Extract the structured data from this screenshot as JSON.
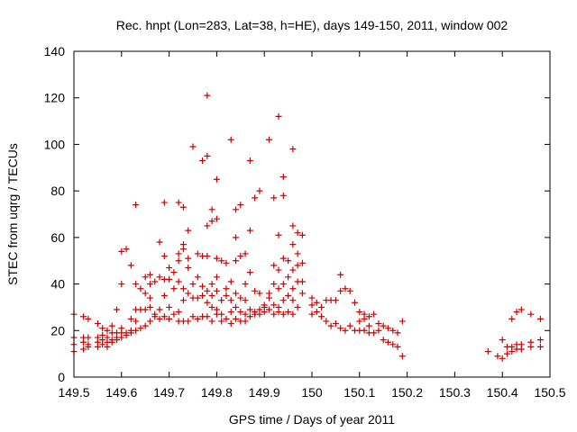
{
  "chart_data": {
    "type": "scatter",
    "title": "Rec. hnpt (Lon=283, Lat=38, h=HE), days 149-150, 2011, window 002",
    "xlabel": "GPS time / Days of year 2011",
    "ylabel": "STEC from uqrg / TECUs",
    "xlim": [
      149.5,
      150.5
    ],
    "ylim": [
      0,
      140
    ],
    "xticks": [
      "149.5",
      "149.6",
      "149.7",
      "149.8",
      "149.9",
      "150",
      "150.1",
      "150.2",
      "150.3",
      "150.4",
      "150.5"
    ],
    "yticks": [
      "0",
      "20",
      "40",
      "60",
      "80",
      "100",
      "120",
      "140"
    ],
    "grid": false,
    "marker": "plus",
    "marker_color": "#cc0000",
    "points": [
      [
        149.5,
        27
      ],
      [
        149.5,
        17
      ],
      [
        149.5,
        14
      ],
      [
        149.5,
        11
      ],
      [
        149.52,
        26
      ],
      [
        149.52,
        17
      ],
      [
        149.52,
        15
      ],
      [
        149.52,
        12
      ],
      [
        149.53,
        25
      ],
      [
        149.53,
        17
      ],
      [
        149.53,
        14
      ],
      [
        149.53,
        13
      ],
      [
        149.55,
        23
      ],
      [
        149.55,
        17
      ],
      [
        149.55,
        15
      ],
      [
        149.55,
        13
      ],
      [
        149.56,
        21
      ],
      [
        149.56,
        18
      ],
      [
        149.56,
        16
      ],
      [
        149.56,
        14
      ],
      [
        149.57,
        20
      ],
      [
        149.57,
        17
      ],
      [
        149.57,
        15
      ],
      [
        149.57,
        13
      ],
      [
        149.58,
        22
      ],
      [
        149.58,
        19
      ],
      [
        149.58,
        16
      ],
      [
        149.58,
        15
      ],
      [
        149.59,
        29
      ],
      [
        149.59,
        19
      ],
      [
        149.59,
        17
      ],
      [
        149.59,
        16
      ],
      [
        149.6,
        54
      ],
      [
        149.6,
        40
      ],
      [
        149.6,
        21
      ],
      [
        149.6,
        19
      ],
      [
        149.6,
        17
      ],
      [
        149.61,
        55
      ],
      [
        149.61,
        19
      ],
      [
        149.61,
        18
      ],
      [
        149.62,
        48
      ],
      [
        149.62,
        25
      ],
      [
        149.62,
        20
      ],
      [
        149.62,
        19
      ],
      [
        149.63,
        74
      ],
      [
        149.63,
        40
      ],
      [
        149.63,
        29
      ],
      [
        149.63,
        24
      ],
      [
        149.63,
        20
      ],
      [
        149.64,
        38
      ],
      [
        149.64,
        29
      ],
      [
        149.64,
        21
      ],
      [
        149.65,
        43
      ],
      [
        149.65,
        36
      ],
      [
        149.65,
        29
      ],
      [
        149.65,
        22
      ],
      [
        149.66,
        44
      ],
      [
        149.66,
        40
      ],
      [
        149.66,
        34
      ],
      [
        149.66,
        30
      ],
      [
        149.66,
        24
      ],
      [
        149.67,
        41
      ],
      [
        149.67,
        27
      ],
      [
        149.67,
        26
      ],
      [
        149.68,
        58
      ],
      [
        149.68,
        43
      ],
      [
        149.68,
        29
      ],
      [
        149.68,
        25
      ],
      [
        149.69,
        75
      ],
      [
        149.69,
        52
      ],
      [
        149.69,
        42
      ],
      [
        149.69,
        35
      ],
      [
        149.69,
        26
      ],
      [
        149.7,
        47
      ],
      [
        149.7,
        42
      ],
      [
        149.7,
        30
      ],
      [
        149.7,
        25
      ],
      [
        149.71,
        45
      ],
      [
        149.71,
        38
      ],
      [
        149.71,
        27
      ],
      [
        149.72,
        75
      ],
      [
        149.72,
        53
      ],
      [
        149.72,
        50
      ],
      [
        149.72,
        41
      ],
      [
        149.72,
        28
      ],
      [
        149.72,
        24
      ],
      [
        149.73,
        73
      ],
      [
        149.73,
        57
      ],
      [
        149.73,
        55
      ],
      [
        149.73,
        38
      ],
      [
        149.73,
        33
      ],
      [
        149.73,
        24
      ],
      [
        149.74,
        63
      ],
      [
        149.74,
        51
      ],
      [
        149.74,
        47
      ],
      [
        149.74,
        36
      ],
      [
        149.74,
        24
      ],
      [
        149.75,
        99
      ],
      [
        149.75,
        40
      ],
      [
        149.75,
        34
      ],
      [
        149.75,
        26
      ],
      [
        149.76,
        53
      ],
      [
        149.76,
        43
      ],
      [
        149.76,
        34
      ],
      [
        149.76,
        25
      ],
      [
        149.77,
        93
      ],
      [
        149.77,
        52
      ],
      [
        149.77,
        39
      ],
      [
        149.77,
        35
      ],
      [
        149.77,
        26
      ],
      [
        149.78,
        121
      ],
      [
        149.78,
        95
      ],
      [
        149.78,
        65
      ],
      [
        149.78,
        52
      ],
      [
        149.78,
        37
      ],
      [
        149.78,
        32
      ],
      [
        149.78,
        26
      ],
      [
        149.79,
        72
      ],
      [
        149.79,
        67
      ],
      [
        149.79,
        40
      ],
      [
        149.79,
        35
      ],
      [
        149.79,
        30
      ],
      [
        149.79,
        24
      ],
      [
        149.8,
        85
      ],
      [
        149.8,
        68
      ],
      [
        149.8,
        51
      ],
      [
        149.8,
        43
      ],
      [
        149.8,
        37
      ],
      [
        149.8,
        29
      ],
      [
        149.8,
        27
      ],
      [
        149.81,
        50
      ],
      [
        149.81,
        33
      ],
      [
        149.81,
        27
      ],
      [
        149.81,
        24
      ],
      [
        149.82,
        49
      ],
      [
        149.82,
        38
      ],
      [
        149.82,
        35
      ],
      [
        149.82,
        25
      ],
      [
        149.83,
        102
      ],
      [
        149.83,
        41
      ],
      [
        149.83,
        33
      ],
      [
        149.83,
        28
      ],
      [
        149.83,
        23
      ],
      [
        149.84,
        72
      ],
      [
        149.84,
        60
      ],
      [
        149.84,
        50
      ],
      [
        149.84,
        36
      ],
      [
        149.84,
        30
      ],
      [
        149.84,
        25
      ],
      [
        149.85,
        74
      ],
      [
        149.85,
        52
      ],
      [
        149.85,
        34
      ],
      [
        149.85,
        28
      ],
      [
        149.85,
        24
      ],
      [
        149.86,
        53
      ],
      [
        149.86,
        40
      ],
      [
        149.86,
        33
      ],
      [
        149.86,
        27
      ],
      [
        149.86,
        24
      ],
      [
        149.87,
        93
      ],
      [
        149.87,
        63
      ],
      [
        149.87,
        45
      ],
      [
        149.87,
        29
      ],
      [
        149.87,
        26
      ],
      [
        149.88,
        77
      ],
      [
        149.88,
        37
      ],
      [
        149.88,
        28
      ],
      [
        149.88,
        27
      ],
      [
        149.89,
        80
      ],
      [
        149.89,
        36
      ],
      [
        149.89,
        29
      ],
      [
        149.89,
        27
      ],
      [
        149.9,
        31
      ],
      [
        149.9,
        30
      ],
      [
        149.9,
        28
      ],
      [
        149.91,
        102
      ],
      [
        149.91,
        36
      ],
      [
        149.91,
        34
      ],
      [
        149.91,
        29
      ],
      [
        149.92,
        77
      ],
      [
        149.92,
        48
      ],
      [
        149.92,
        40
      ],
      [
        149.92,
        31
      ],
      [
        149.92,
        27
      ],
      [
        149.93,
        112
      ],
      [
        149.93,
        61
      ],
      [
        149.93,
        46
      ],
      [
        149.93,
        38
      ],
      [
        149.93,
        30
      ],
      [
        149.93,
        28
      ],
      [
        149.94,
        78
      ],
      [
        149.94,
        86
      ],
      [
        149.94,
        51
      ],
      [
        149.94,
        40
      ],
      [
        149.94,
        33
      ],
      [
        149.94,
        27
      ],
      [
        149.95,
        50
      ],
      [
        149.95,
        43
      ],
      [
        149.95,
        35
      ],
      [
        149.95,
        28
      ],
      [
        149.96,
        98
      ],
      [
        149.96,
        65
      ],
      [
        149.96,
        57
      ],
      [
        149.96,
        46
      ],
      [
        149.96,
        38
      ],
      [
        149.96,
        33
      ],
      [
        149.96,
        27
      ],
      [
        149.97,
        62
      ],
      [
        149.97,
        53
      ],
      [
        149.97,
        48
      ],
      [
        149.97,
        41
      ],
      [
        149.97,
        30
      ],
      [
        149.98,
        61
      ],
      [
        149.98,
        49
      ],
      [
        149.98,
        41
      ],
      [
        149.98,
        36
      ],
      [
        150.0,
        34
      ],
      [
        150.0,
        31
      ],
      [
        150.0,
        27
      ],
      [
        150.01,
        32
      ],
      [
        150.01,
        28
      ],
      [
        150.02,
        30
      ],
      [
        150.02,
        26
      ],
      [
        150.03,
        33
      ],
      [
        150.03,
        24
      ],
      [
        150.04,
        33
      ],
      [
        150.04,
        22
      ],
      [
        150.05,
        33
      ],
      [
        150.05,
        23
      ],
      [
        150.06,
        44
      ],
      [
        150.06,
        37
      ],
      [
        150.06,
        21
      ],
      [
        150.07,
        38
      ],
      [
        150.07,
        20
      ],
      [
        150.08,
        37
      ],
      [
        150.08,
        22
      ],
      [
        150.09,
        32
      ],
      [
        150.09,
        20
      ],
      [
        150.1,
        28
      ],
      [
        150.1,
        24
      ],
      [
        150.1,
        20
      ],
      [
        150.11,
        27
      ],
      [
        150.11,
        25
      ],
      [
        150.11,
        20
      ],
      [
        150.12,
        26
      ],
      [
        150.12,
        22
      ],
      [
        150.12,
        19
      ],
      [
        150.13,
        27
      ],
      [
        150.13,
        19
      ],
      [
        150.14,
        23
      ],
      [
        150.14,
        20
      ],
      [
        150.15,
        22
      ],
      [
        150.15,
        16
      ],
      [
        150.16,
        21
      ],
      [
        150.16,
        15
      ],
      [
        150.17,
        20
      ],
      [
        150.17,
        14
      ],
      [
        150.18,
        19
      ],
      [
        150.18,
        13
      ],
      [
        150.19,
        24
      ],
      [
        150.19,
        9
      ],
      [
        150.37,
        11
      ],
      [
        150.39,
        9
      ],
      [
        150.4,
        16
      ],
      [
        150.4,
        8
      ],
      [
        150.41,
        13
      ],
      [
        150.41,
        10
      ],
      [
        150.42,
        25
      ],
      [
        150.42,
        13
      ],
      [
        150.42,
        11
      ],
      [
        150.43,
        28
      ],
      [
        150.43,
        14
      ],
      [
        150.43,
        12
      ],
      [
        150.44,
        29
      ],
      [
        150.44,
        14
      ],
      [
        150.44,
        12
      ],
      [
        150.46,
        27
      ],
      [
        150.46,
        15
      ],
      [
        150.46,
        13
      ],
      [
        150.48,
        25
      ],
      [
        150.48,
        16
      ],
      [
        150.48,
        13
      ]
    ]
  }
}
